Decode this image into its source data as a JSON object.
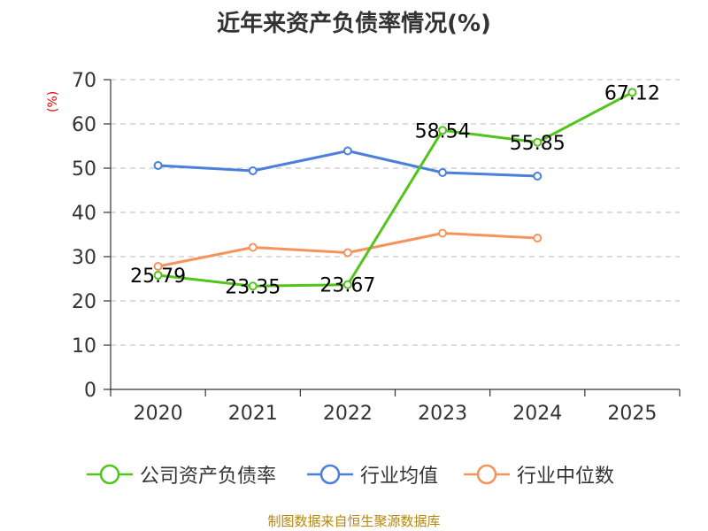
{
  "chart_data": {
    "type": "line",
    "title": "近年来资产负债率情况(%)",
    "ylabel": "(%)",
    "xlabel": "",
    "categories": [
      "2020",
      "2021",
      "2022",
      "2023",
      "2024",
      "2025"
    ],
    "ylim": [
      0,
      70
    ],
    "yticks": [
      0,
      10,
      20,
      30,
      40,
      50,
      60,
      70
    ],
    "grid": "horizontal dashed",
    "legend_position": "bottom",
    "series": [
      {
        "name": "公司资产负债率",
        "color": "#52c41a",
        "values": [
          25.79,
          23.35,
          23.67,
          58.54,
          55.85,
          67.12
        ],
        "labels": [
          "25.79",
          "23.35",
          "23.67",
          "58.54",
          "55.85",
          "67.12"
        ]
      },
      {
        "name": "行业均值",
        "color": "#4a7fdc",
        "values": [
          50.6,
          49.4,
          53.9,
          49.0,
          48.2,
          null
        ]
      },
      {
        "name": "行业中位数",
        "color": "#f5935c",
        "values": [
          27.8,
          32.1,
          30.9,
          35.3,
          34.2,
          null
        ]
      }
    ]
  },
  "footer": {
    "source": "制图数据来自恒生聚源数据库"
  }
}
